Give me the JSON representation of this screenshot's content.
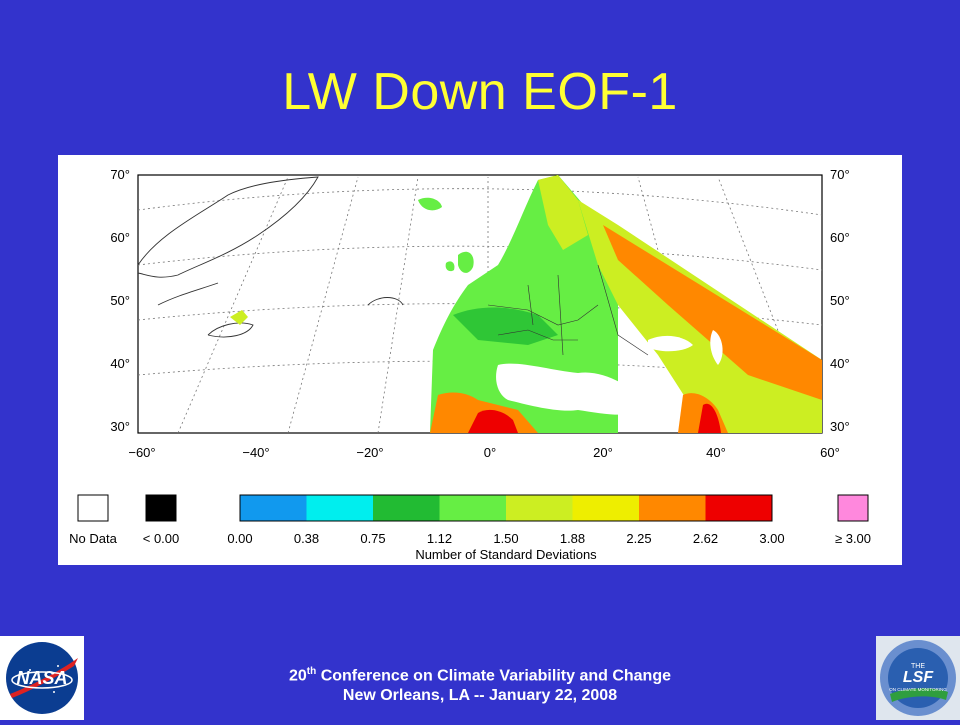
{
  "slide": {
    "title": "LW Down EOF-1"
  },
  "map": {
    "lat_labels": [
      "70°",
      "60°",
      "50°",
      "40°",
      "30°"
    ],
    "lon_labels": [
      "−60°",
      "−40°",
      "−20°",
      "0°",
      "20°",
      "40°",
      "60°"
    ]
  },
  "legend": {
    "no_data": {
      "label": "No Data",
      "color": "#ffffff"
    },
    "below_zero": {
      "label": "< 0.00",
      "color": "#000000"
    },
    "above_max": {
      "label": "≥ 3.00",
      "color": "#ff88dd"
    },
    "ticks": [
      "0.00",
      "0.38",
      "0.75",
      "1.12",
      "1.50",
      "1.88",
      "2.25",
      "2.62",
      "3.00"
    ],
    "colors": [
      "#1199ee",
      "#00eeee",
      "#22bb33",
      "#66ee44",
      "#ccee22",
      "#eeee00",
      "#ff8800",
      "#ee0000",
      "#dd11bb"
    ],
    "axis_title": "Number of Standard Deviations"
  },
  "footer": {
    "line1_main": "20",
    "line1_sup": "th",
    "line1_rest": " Conference on Climate Variability and Change",
    "line2": "New Orleans, LA -- January 22, 2008"
  },
  "logos": {
    "left": {
      "text": "NASA"
    },
    "right": {
      "text_top": "THE",
      "text_main": "LSF",
      "text_sub": "ON CLIMATE MONITORING"
    }
  }
}
